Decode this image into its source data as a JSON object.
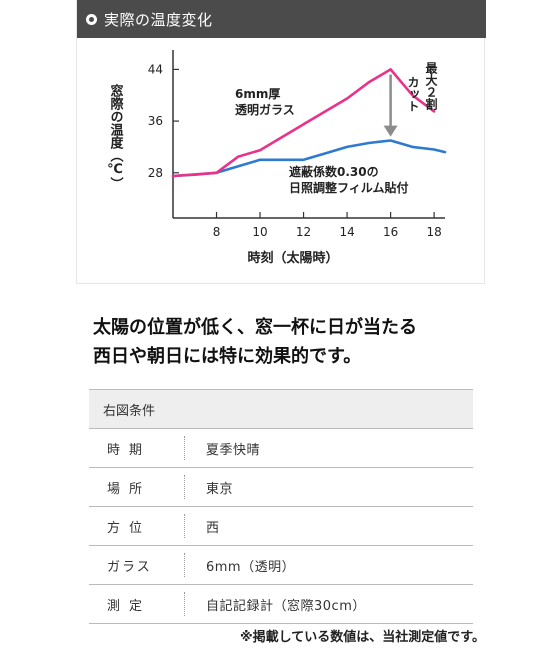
{
  "header": {
    "title": "実際の温度変化"
  },
  "chart_data": {
    "type": "line",
    "xlabel": "時刻（太陽時）",
    "ylabel": "窓際の温度（℃）",
    "x_ticks": [
      8,
      10,
      12,
      14,
      16,
      18
    ],
    "y_ticks": [
      28,
      36,
      44
    ],
    "xlim": [
      6,
      18.5
    ],
    "ylim": [
      21,
      47
    ],
    "series": [
      {
        "name": "6mm厚透明ガラス",
        "color": "#e8338a",
        "x": [
          6,
          8,
          9,
          10,
          11,
          12,
          13,
          14,
          15,
          16,
          17,
          18
        ],
        "y": [
          27.5,
          28,
          30.5,
          31.5,
          33.5,
          35.5,
          37.5,
          39.5,
          42,
          44,
          40,
          37.5
        ]
      },
      {
        "name": "遮蔽係数0.30の日照調整フィルム貼付",
        "color": "#2f7ad1",
        "x": [
          6,
          7,
          8,
          9,
          10,
          11,
          12,
          13,
          14,
          15,
          16,
          17,
          18,
          18.5
        ],
        "y": [
          27.5,
          27.7,
          28,
          29,
          30,
          30,
          30,
          31,
          32,
          32.6,
          33,
          32,
          31.6,
          31.2
        ]
      }
    ],
    "annotations": {
      "glass_label": [
        "6mm厚",
        "透明ガラス"
      ],
      "film_label": [
        "遮蔽係数0.30の",
        "日照調整フィルム貼付"
      ],
      "cut_label_col1": "最大２割",
      "cut_label_col2": "カット"
    }
  },
  "headline": {
    "line1": "太陽の位置が低く、窓一杯に日が当たる",
    "line2": "西日や朝日には特に効果的です。"
  },
  "conditions": {
    "title": "右図条件",
    "rows": [
      {
        "label": "時期",
        "value": "夏季快晴"
      },
      {
        "label": "場所",
        "value": "東京"
      },
      {
        "label": "方位",
        "value": "西"
      },
      {
        "label": "ガラス",
        "value": "6mm（透明）"
      },
      {
        "label": "測定",
        "value": "自記記録計（窓際30cm）"
      }
    ]
  },
  "footnote": "※掲載している数値は、当社測定値です。"
}
